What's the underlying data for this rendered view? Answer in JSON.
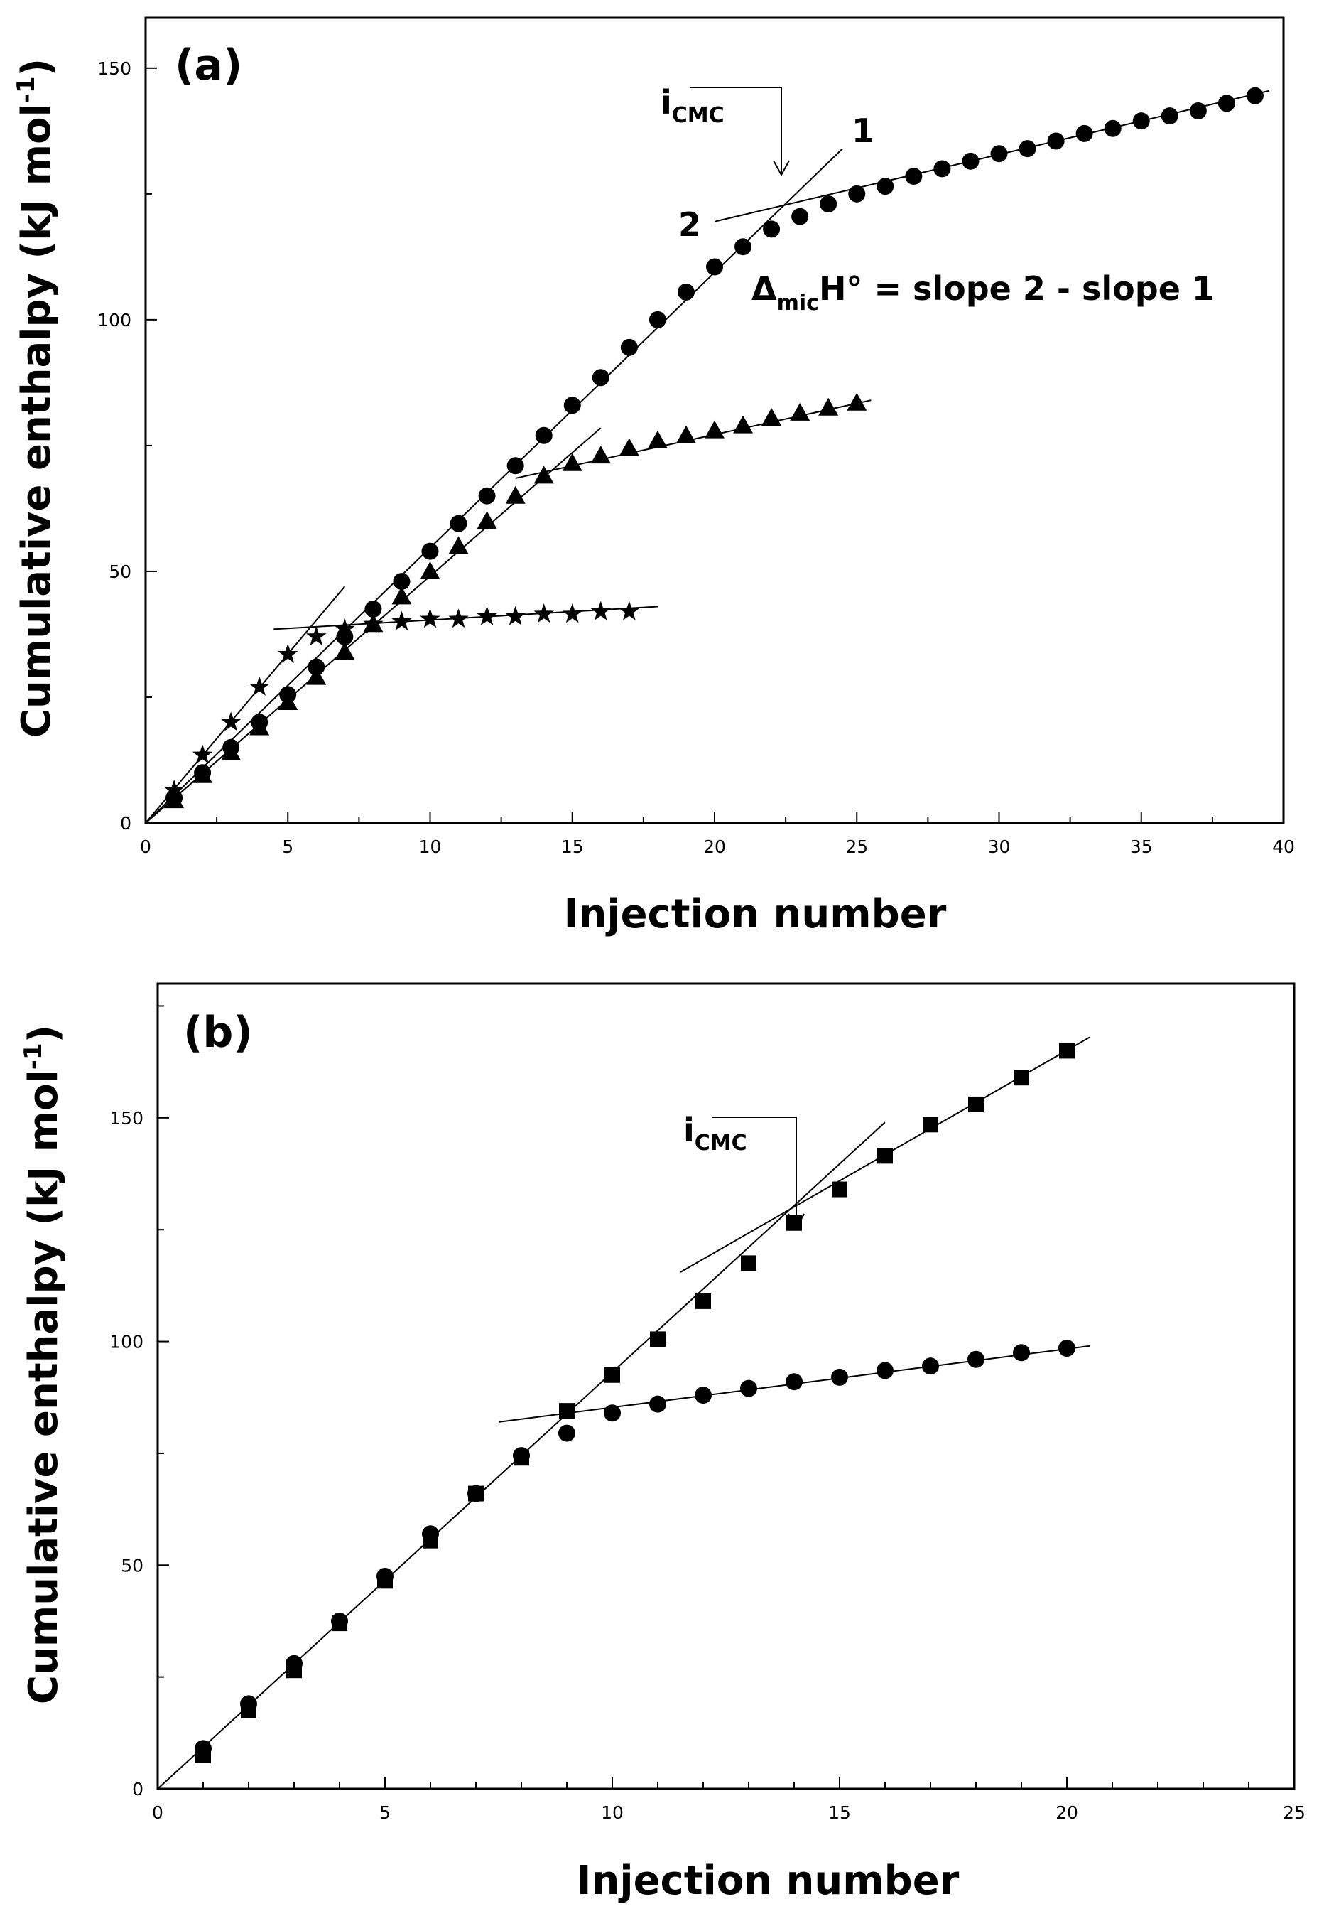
{
  "chart_data": [
    {
      "type": "scatter",
      "panel_label": "(a)",
      "xlabel": "Injection number",
      "ylabel": "Cumulative enthalpy (kJ mol",
      "ylabel_sup": "-1",
      "ylabel_end": ")",
      "xlim": [
        0,
        40
      ],
      "ylim": [
        0,
        160
      ],
      "xticks": [
        0,
        5,
        10,
        15,
        20,
        25,
        30,
        35,
        40
      ],
      "yticks": [
        0,
        50,
        100,
        150
      ],
      "grid": false,
      "series": [
        {
          "name": "circles",
          "marker": "circle",
          "x": [
            1,
            2,
            3,
            4,
            5,
            6,
            7,
            8,
            9,
            10,
            11,
            12,
            13,
            14,
            15,
            16,
            17,
            18,
            19,
            20,
            21,
            22,
            23,
            24,
            25,
            26,
            27,
            28,
            29,
            30,
            31,
            32,
            33,
            34,
            35,
            36,
            37,
            38,
            39
          ],
          "y": [
            5,
            10,
            15,
            20,
            25.5,
            31,
            37,
            42.5,
            48,
            54,
            59.5,
            65,
            71,
            77,
            83,
            88.5,
            94.5,
            100,
            105.5,
            110.5,
            114.5,
            118,
            120.5,
            123,
            125,
            126.5,
            128.5,
            130,
            131.5,
            133,
            134,
            135.5,
            137,
            138,
            139.5,
            140.5,
            141.5,
            143,
            144.5
          ]
        },
        {
          "name": "triangles",
          "marker": "triangle",
          "x": [
            1,
            2,
            3,
            4,
            5,
            6,
            7,
            8,
            9,
            10,
            11,
            12,
            13,
            14,
            15,
            16,
            17,
            18,
            19,
            20,
            21,
            22,
            23,
            24,
            25
          ],
          "y": [
            4.5,
            9.5,
            14,
            19,
            24,
            29,
            34,
            39.5,
            45,
            50,
            55,
            60,
            65,
            69,
            71.5,
            73,
            74.5,
            76,
            77,
            78,
            79,
            80.5,
            81.5,
            82.5,
            83.5
          ]
        },
        {
          "name": "stars",
          "marker": "star",
          "x": [
            1,
            2,
            3,
            4,
            5,
            6,
            7,
            8,
            9,
            10,
            11,
            12,
            13,
            14,
            15,
            16,
            17
          ],
          "y": [
            6.5,
            13.5,
            20,
            27,
            33.5,
            37,
            38.5,
            39.5,
            40,
            40.5,
            40.5,
            41,
            41,
            41.5,
            41.5,
            42,
            42
          ]
        }
      ],
      "fit_lines": [
        {
          "name": "circles-line-1",
          "x": [
            0,
            24.5
          ],
          "y": [
            0,
            134
          ]
        },
        {
          "name": "circles-line-2",
          "x": [
            20,
            39.5
          ],
          "y": [
            119.5,
            145.5
          ]
        },
        {
          "name": "triangles-line-1",
          "x": [
            0,
            16
          ],
          "y": [
            0,
            78.5
          ]
        },
        {
          "name": "triangles-line-2",
          "x": [
            13,
            25.5
          ],
          "y": [
            68.5,
            84
          ]
        },
        {
          "name": "stars-line-1",
          "x": [
            0,
            7
          ],
          "y": [
            0,
            47
          ]
        },
        {
          "name": "stars-line-2",
          "x": [
            4.5,
            18
          ],
          "y": [
            38.5,
            43
          ]
        }
      ],
      "annotations": {
        "icmc_main": "i",
        "icmc_sub": "CMC",
        "line1_label": "1",
        "line2_label": "2",
        "eq_delta": "Δ",
        "eq_sub": "mic",
        "eq_rest": "H° = slope 2 - slope 1"
      }
    },
    {
      "type": "scatter",
      "panel_label": "(b)",
      "xlabel": "Injection number",
      "ylabel": "Cumulative enthalpy (kJ mol",
      "ylabel_sup": "-1",
      "ylabel_end": ")",
      "xlim": [
        0,
        25
      ],
      "ylim": [
        0,
        180
      ],
      "xticks": [
        0,
        5,
        10,
        15,
        20,
        25
      ],
      "yticks": [
        0,
        50,
        100,
        150
      ],
      "grid": false,
      "series": [
        {
          "name": "squares",
          "marker": "square",
          "x": [
            1,
            2,
            3,
            4,
            5,
            6,
            7,
            8,
            9,
            10,
            11,
            12,
            13,
            14,
            15,
            16,
            17,
            18,
            19,
            20
          ],
          "y": [
            7.5,
            17.5,
            26.5,
            37,
            46.5,
            55.5,
            66,
            74,
            84.5,
            92.5,
            100.5,
            109,
            117.5,
            126.5,
            134,
            141.5,
            148.5,
            153,
            159,
            165
          ]
        },
        {
          "name": "circles",
          "marker": "circle",
          "x": [
            1,
            2,
            3,
            4,
            5,
            6,
            7,
            8,
            9,
            10,
            11,
            12,
            13,
            14,
            15,
            16,
            17,
            18,
            19,
            20
          ],
          "y": [
            9,
            19,
            28,
            37.5,
            47.5,
            57,
            66,
            74.5,
            79.5,
            84,
            86,
            88,
            89.5,
            91,
            92,
            93.5,
            94.5,
            96,
            97.5,
            98.5
          ]
        }
      ],
      "fit_lines": [
        {
          "name": "diagonal-line",
          "x": [
            0,
            16
          ],
          "y": [
            0,
            149
          ]
        },
        {
          "name": "squares-line-2",
          "x": [
            11.5,
            20.5
          ],
          "y": [
            115.5,
            168
          ]
        },
        {
          "name": "circles-line-2",
          "x": [
            7.5,
            20.5
          ],
          "y": [
            82,
            99
          ]
        }
      ],
      "annotations": {
        "icmc_main": "i",
        "icmc_sub": "CMC"
      }
    }
  ]
}
